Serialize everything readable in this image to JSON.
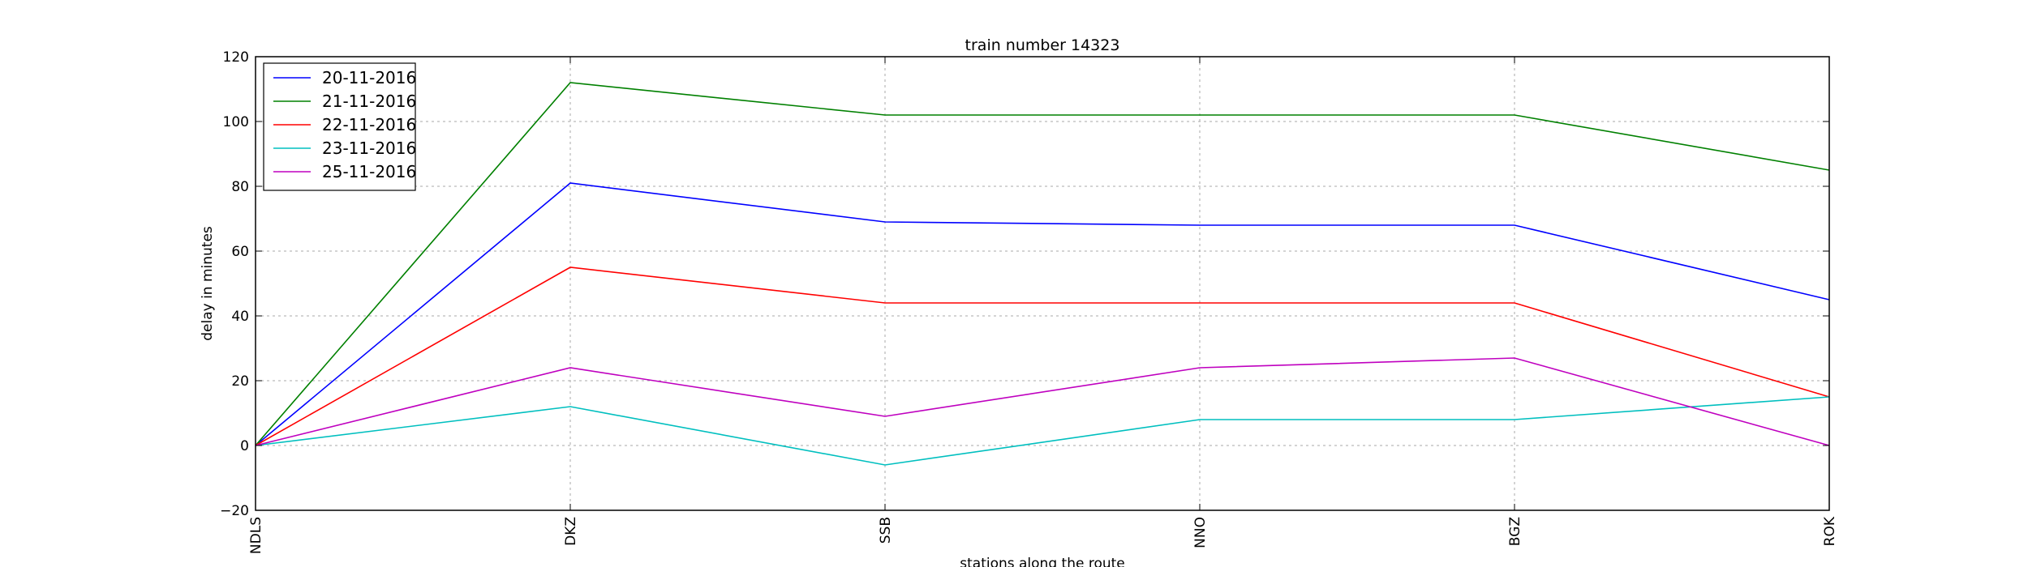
{
  "chart_data": {
    "type": "line",
    "title": "train number 14323",
    "xlabel": "stations along the route",
    "ylabel": "delay in minutes",
    "categories": [
      "NDLS",
      "DKZ",
      "SSB",
      "NNO",
      "BGZ",
      "ROK"
    ],
    "ylim": [
      -20,
      120
    ],
    "yticks": [
      -20,
      0,
      20,
      40,
      60,
      80,
      100,
      120
    ],
    "grid": true,
    "legend_position": "top-left",
    "series": [
      {
        "name": "20-11-2016",
        "color": "#0000ff",
        "values": [
          0,
          81,
          69,
          68,
          68,
          45
        ]
      },
      {
        "name": "21-11-2016",
        "color": "#008000",
        "values": [
          0,
          112,
          102,
          102,
          102,
          85
        ]
      },
      {
        "name": "22-11-2016",
        "color": "#ff0000",
        "values": [
          0,
          55,
          44,
          44,
          44,
          15
        ]
      },
      {
        "name": "23-11-2016",
        "color": "#00bfbf",
        "values": [
          0,
          12,
          -6,
          8,
          8,
          15
        ]
      },
      {
        "name": "25-11-2016",
        "color": "#bf00bf",
        "values": [
          0,
          24,
          9,
          24,
          27,
          0
        ]
      }
    ]
  }
}
